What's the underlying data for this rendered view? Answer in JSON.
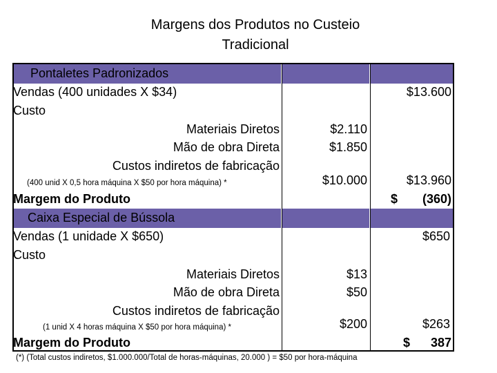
{
  "title": [
    "Margens dos Produtos no Custeio",
    "Tradicional"
  ],
  "sections": [
    {
      "header": "Pontaletes Padronizados",
      "sales_label": "Vendas (400 unidades X $34)",
      "sales_total": "$13.600",
      "cost_label": "Custo",
      "items": [
        {
          "label": "Materiais Diretos",
          "value": "$2.110"
        },
        {
          "label": "Mão de obra Direta",
          "value": "$1.850"
        },
        {
          "label": "Custos indiretos de fabricação",
          "value": ""
        }
      ],
      "note": "(400 unid X 0,5 hora máquina X $50 por hora máquina) *",
      "note_value": "$10.000",
      "cost_total": "$13.960",
      "margin_label": "Margem do Produto",
      "margin_currency": "$",
      "margin_value": "(360)"
    },
    {
      "header": "Caixa Especial de Bússola",
      "sales_label": "Vendas (1 unidade X $650)",
      "sales_total": "$650",
      "cost_label": "Custo",
      "items": [
        {
          "label": "Materiais Diretos",
          "value": "$13"
        },
        {
          "label": "Mão de obra Direta",
          "value": "$50"
        },
        {
          "label": "Custos indiretos de fabricação",
          "value": ""
        }
      ],
      "note": "(1 unid X 4 horas máquina X $50 por hora máquina) *",
      "note_value": "$200",
      "cost_total": "$263",
      "margin_label": "Margem do Produto",
      "margin_currency": "$",
      "margin_value": "387"
    }
  ],
  "footnote": "(*) (Total custos indiretos, $1.000.000/Total de horas-máquinas, 20.000 ) = $50 por hora-máquina",
  "colors": {
    "band": "#6b60a8"
  }
}
